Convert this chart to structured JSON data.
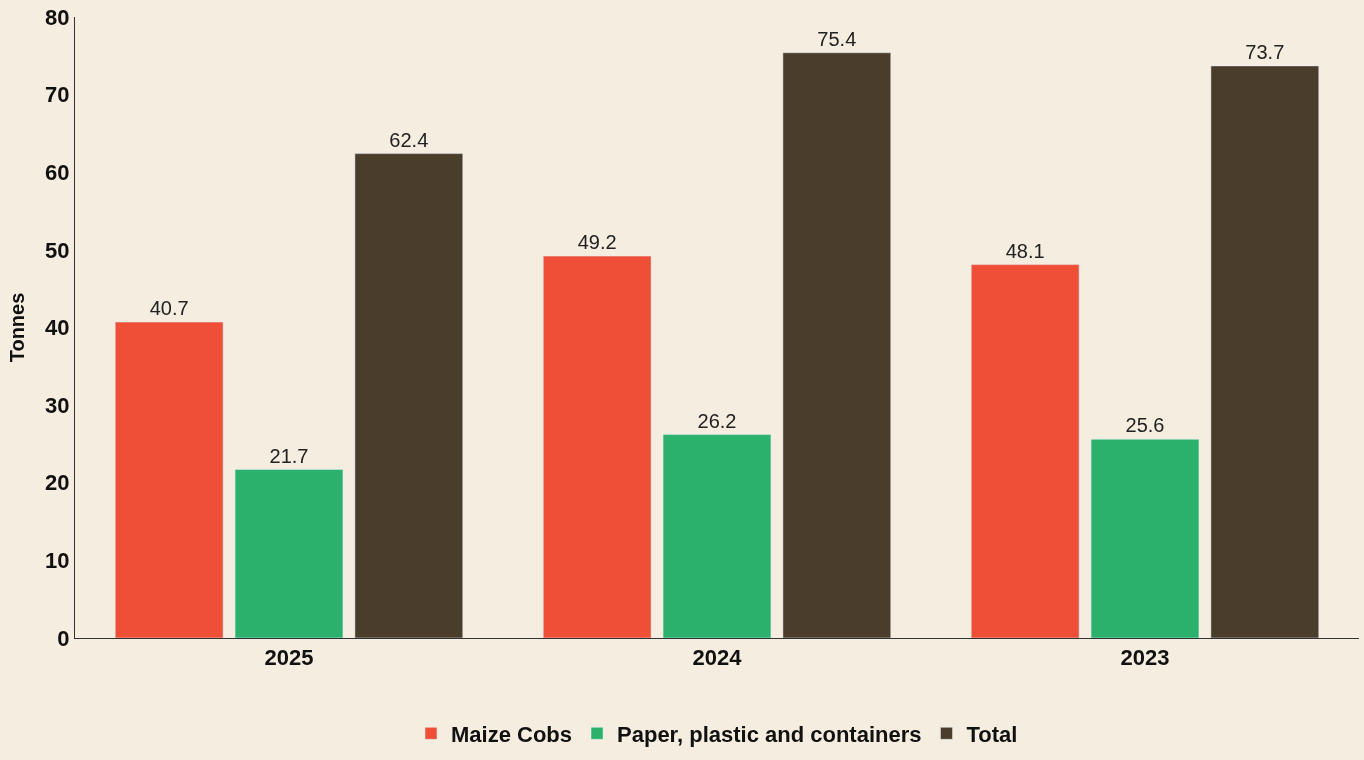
{
  "chart_data": {
    "type": "bar",
    "ylabel": "Tonnes",
    "categories": [
      "2025",
      "2024",
      "2023"
    ],
    "series": [
      {
        "name": "Maize Cobs",
        "color": "#ef4f37",
        "values": [
          40.7,
          49.2,
          48.1
        ]
      },
      {
        "name": "Paper, plastic and containers",
        "color": "#2bb16b",
        "values": [
          21.7,
          26.2,
          25.6
        ]
      },
      {
        "name": "Total",
        "color": "#4b3d2b",
        "values": [
          62.4,
          75.4,
          73.7
        ]
      }
    ],
    "ylim": [
      0,
      80
    ],
    "yticks": [
      0,
      10,
      20,
      30,
      40,
      50,
      60,
      70,
      80
    ],
    "grid": false,
    "legend": "bottom",
    "data_labels": true
  }
}
